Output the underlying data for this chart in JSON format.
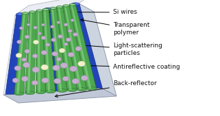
{
  "fig_width": 3.21,
  "fig_height": 1.69,
  "dpi": 100,
  "background": "#ffffff",
  "labels": {
    "si_wires": "Si wires",
    "transparent_polymer": "Transparent\npolymer",
    "light_scattering": "Light-scattering\nparticles",
    "antireflective": "Antireflective coating",
    "back_reflector": "Back-reflector"
  },
  "colors": {
    "wire_green": "#4ea84e",
    "wire_dark_green": "#2d6e2d",
    "wire_light_green": "#90d890",
    "wire_cap_top": "#80c880",
    "blue_panel": "#2244bb",
    "blue_panel_dark": "#1a3390",
    "blue_panel_light": "#5577ee",
    "box_face": "#dde2ec",
    "box_edge": "#909aaa",
    "box_bottom": "#c0c8d8",
    "box_right": "#ccd4e0",
    "particle_fill": "#c8aed0",
    "particle_edge": "#a888b8",
    "particle_highlight": "#e0d0e8",
    "yolk_fill": "#f0f0cc",
    "yolk_edge": "#c8c898",
    "annotation_line": "#000000",
    "text_color": "#111111"
  },
  "label_fontsize": 6.5
}
